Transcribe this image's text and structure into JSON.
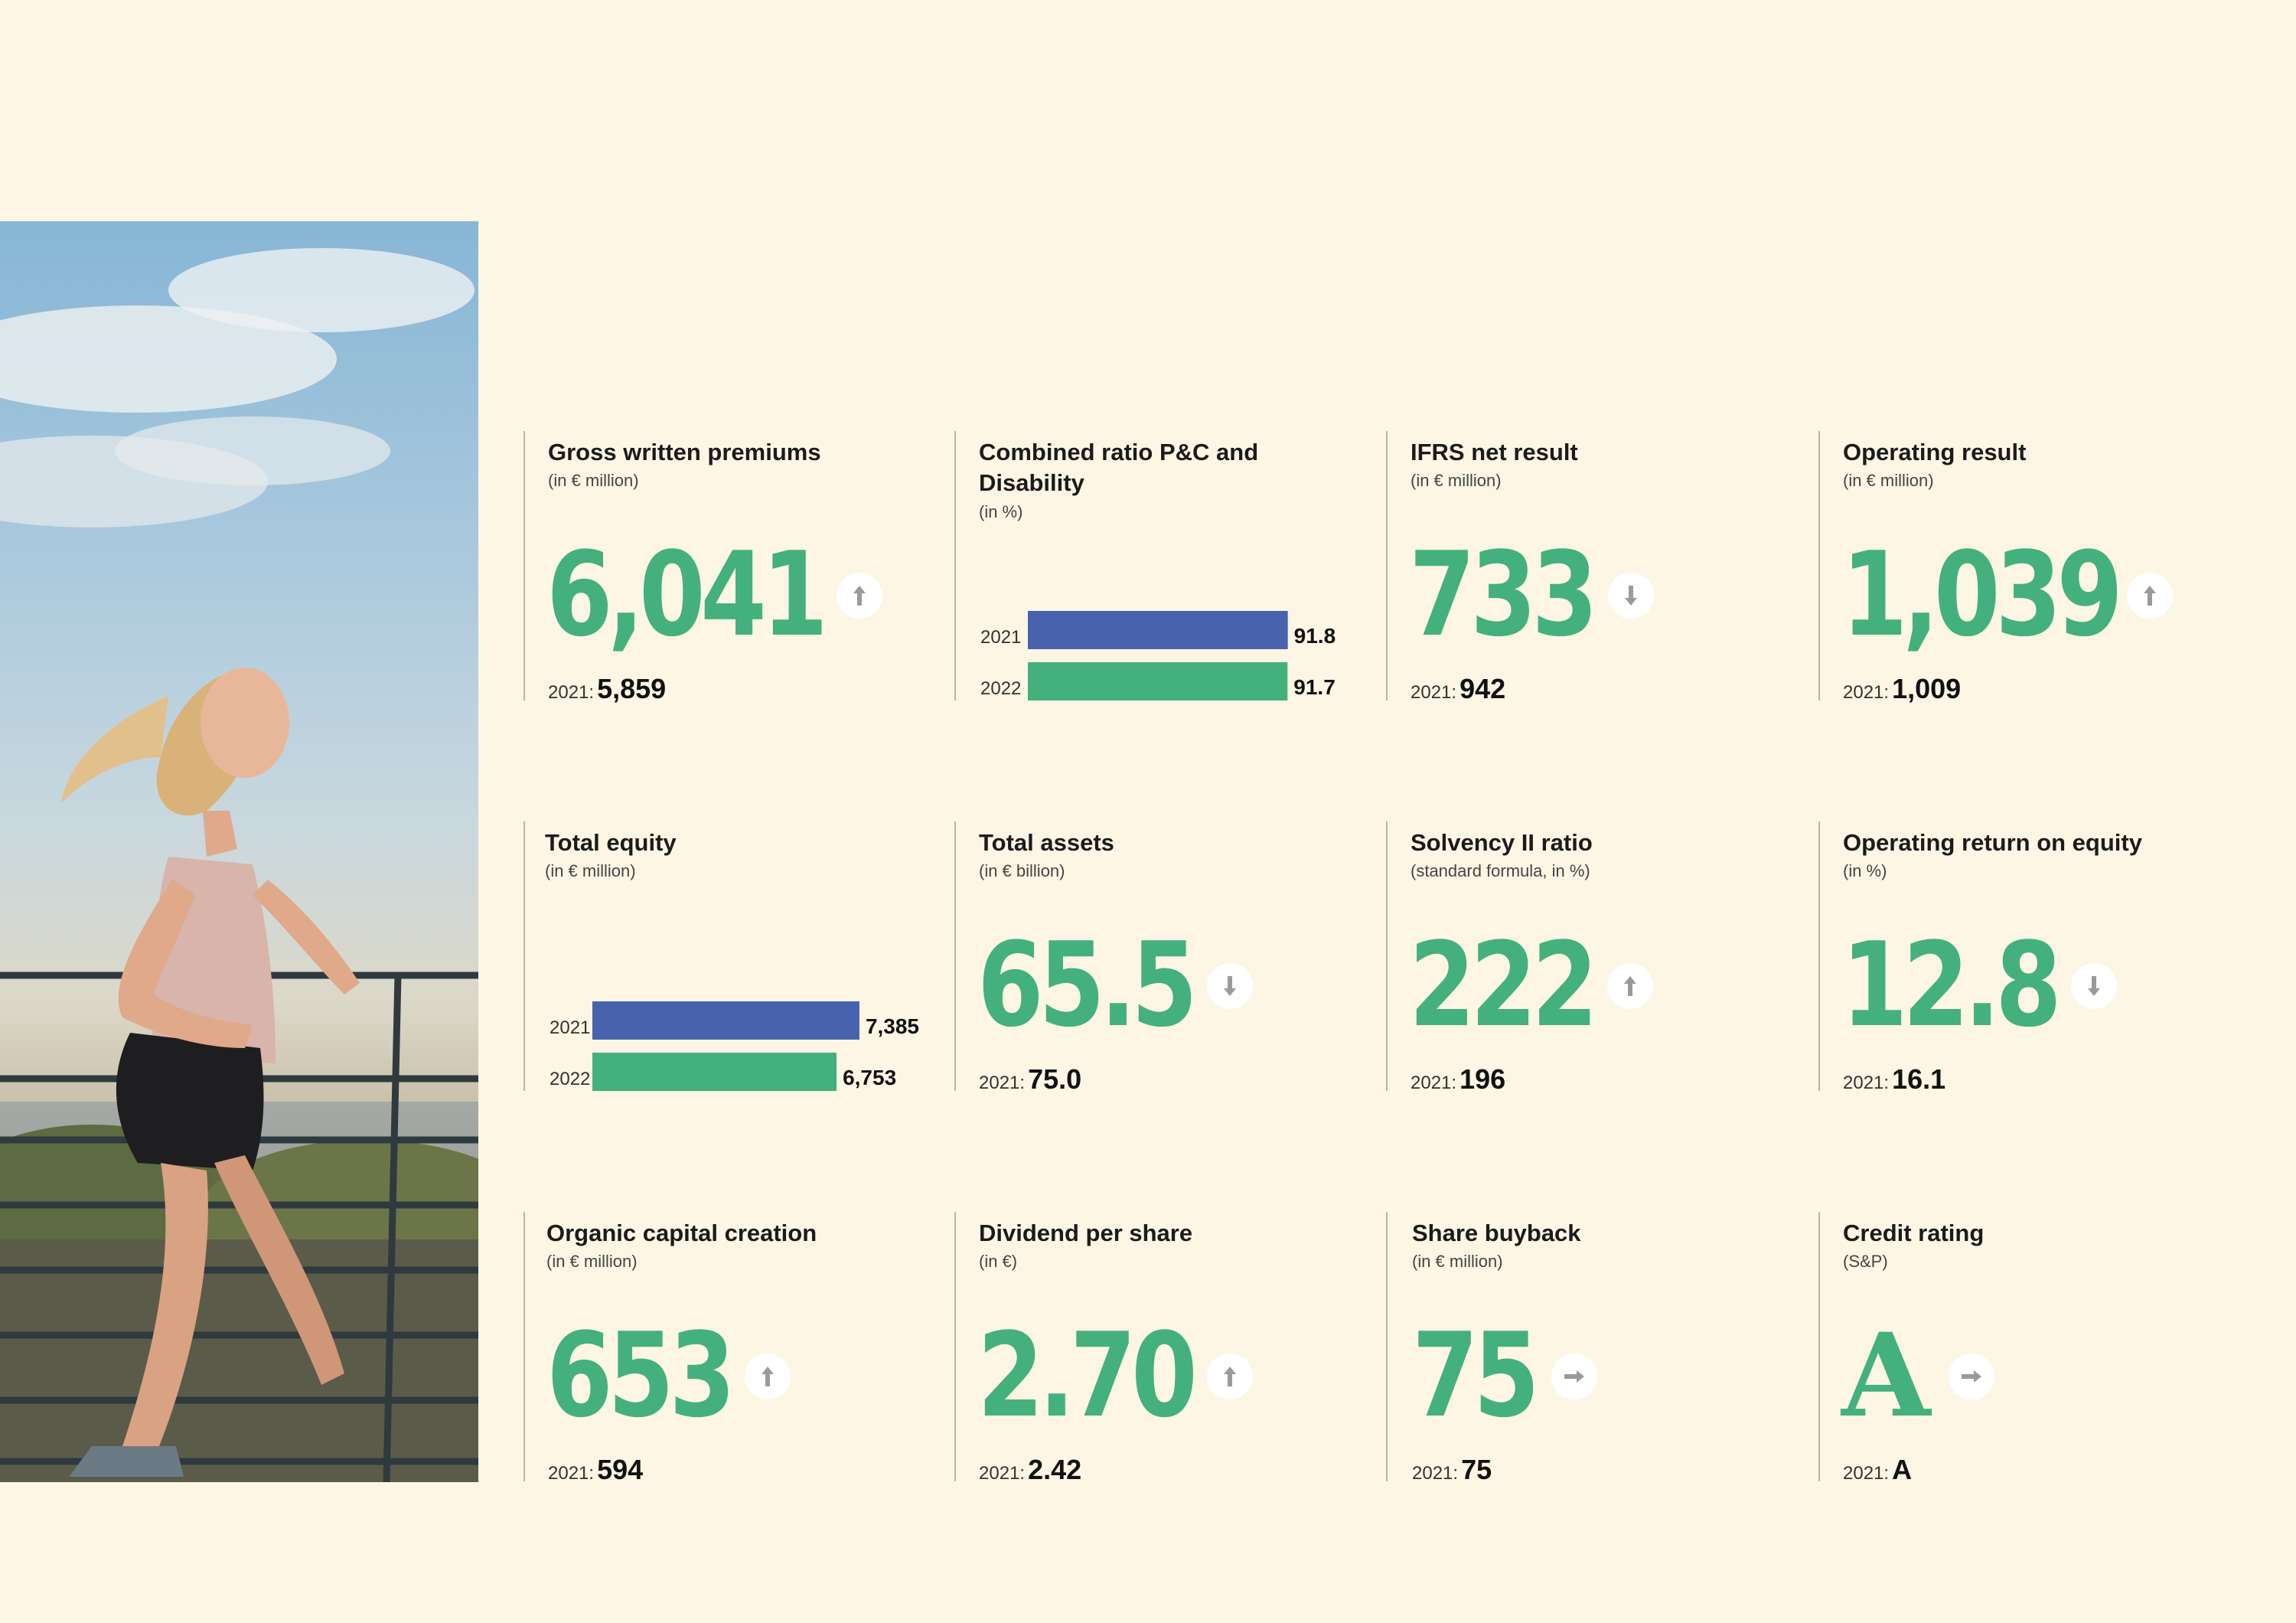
{
  "photo": {
    "alt": "runner"
  },
  "colors": {
    "accent_green": "#44b07e",
    "bar_blue": "#4863ae",
    "bar_green": "#44b07e",
    "arrow_gray": "#9a9a9a"
  },
  "kpis": [
    {
      "title": "Gross written premiums",
      "unit": "(in € million)",
      "value": "6,041",
      "trend": "up",
      "prior_label": "2021:",
      "prior_value": "5,859"
    },
    {
      "title": "Combined ratio P&C and Disability",
      "unit": "(in %)",
      "chart": true,
      "trend": "",
      "chart_data": {
        "type": "bar",
        "categories": [
          "2021",
          "2022"
        ],
        "values": [
          91.8,
          91.7
        ],
        "value_labels": [
          "91.8",
          "91.7"
        ],
        "colors": [
          "#4863ae",
          "#44b07e"
        ],
        "xlim": [
          0,
          100
        ]
      }
    },
    {
      "title": "IFRS net result",
      "unit": "(in € million)",
      "value": "733",
      "trend": "down",
      "prior_label": "2021:",
      "prior_value": "942"
    },
    {
      "title": "Operating result",
      "unit": "(in € million)",
      "value": "1,039",
      "trend": "up",
      "prior_label": "2021:",
      "prior_value": "1,009"
    },
    {
      "title": "Total equity",
      "unit": "(in € million)",
      "chart": true,
      "trend": "",
      "chart_data": {
        "type": "bar",
        "categories": [
          "2021",
          "2022"
        ],
        "values": [
          7385,
          6753
        ],
        "value_labels": [
          "7,385",
          "6,753"
        ],
        "colors": [
          "#4863ae",
          "#44b07e"
        ],
        "xlim": [
          0,
          8000
        ]
      }
    },
    {
      "title": "Total assets",
      "unit": "(in € billion)",
      "value": "65.5",
      "trend": "down",
      "prior_label": "2021:",
      "prior_value": "75.0"
    },
    {
      "title": "Solvency II ratio",
      "unit": "(standard formula, in %)",
      "value": "222",
      "trend": "up",
      "prior_label": "2021:",
      "prior_value": "196"
    },
    {
      "title": "Operating return on equity",
      "unit": "(in %)",
      "value": "12.8",
      "trend": "down",
      "prior_label": "2021:",
      "prior_value": "16.1"
    },
    {
      "title": "Organic capital creation",
      "unit": "(in € million)",
      "value": "653",
      "trend": "up",
      "prior_label": "2021:",
      "prior_value": "594"
    },
    {
      "title": "Dividend per share",
      "unit": "(in €)",
      "value": "2.70",
      "trend": "up",
      "prior_label": "2021:",
      "prior_value": "2.42"
    },
    {
      "title": "Share buyback",
      "unit": "(in € million)",
      "value": "75",
      "trend": "flat",
      "prior_label": "2021:",
      "prior_value": "75"
    },
    {
      "title": "Credit rating",
      "unit": "(S&P)",
      "value": "A",
      "trend": "flat",
      "prior_label": "2021:",
      "prior_value": "A",
      "serif": true
    }
  ]
}
